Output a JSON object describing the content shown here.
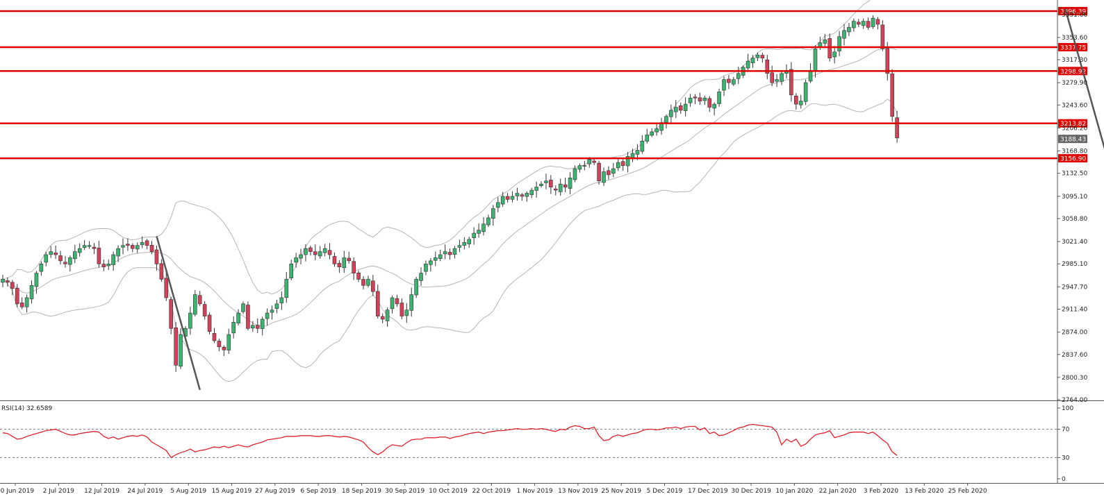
{
  "chart_data": [
    {
      "type": "candlestick",
      "title": "",
      "price_axis": {
        "ylim": [
          2764,
          3410
        ],
        "ticks": [
          "3391.00",
          "3353.60",
          "3317.30",
          "3279.90",
          "3243.60",
          "3206.20",
          "3168.80",
          "3132.50",
          "3095.10",
          "3058.80",
          "3021.40",
          "2985.10",
          "2947.70",
          "2911.40",
          "2874.00",
          "2837.60",
          "2800.30",
          "2764.00"
        ]
      },
      "date_labels": [
        "20 Jun 2019",
        "2 Jul 2019",
        "12 Jul 2019",
        "24 Jul 2019",
        "5 Aug 2019",
        "15 Aug 2019",
        "27 Aug 2019",
        "6 Sep 2019",
        "18 Sep 2019",
        "30 Sep 2019",
        "10 Oct 2019",
        "22 Oct 2019",
        "1 Nov 2019",
        "13 Nov 2019",
        "25 Nov 2019",
        "5 Dec 2019",
        "17 Dec 2019",
        "30 Dec 2019",
        "10 Jan 2020",
        "22 Jan 2020",
        "3 Feb 2020",
        "13 Feb 2020",
        "25 Feb 2020"
      ],
      "date_label_text": [
        "20 Jun 2019",
        "2 Jul 2019",
        "12 Jul 2019",
        "24 Jul 2019",
        "5 Aug 2019",
        "15 Aug 2019",
        "27 Aug 2019",
        "6 Sep 2019",
        "18 Sep 2019",
        "30 Sep 2019",
        "10 Oct 2019",
        "22 Oct 2019",
        "1 Nov 2019",
        "13 Nov 2019",
        "25 Nov 2019",
        "5 Dec 2019",
        "17 Dec 2019",
        "30 Dec 2019",
        "10 Jan 2020",
        "22 Jan 2020",
        "3 Feb 2020",
        "13 Feb 2020",
        "25 Feb 2020"
      ],
      "horizontal_levels": [
        {
          "label": "3396.39",
          "value": 3396.39
        },
        {
          "label": "3337.75",
          "value": 3337.75
        },
        {
          "label": "3298.92",
          "value": 3298.92
        },
        {
          "label": "3213.82",
          "value": 3213.82
        },
        {
          "label": "3156.90",
          "value": 3156.9
        }
      ],
      "current_price": {
        "label": "3188.43",
        "value": 3188.43
      },
      "trend_lines": [
        {
          "from": {
            "bar": 32,
            "price": 3030
          },
          "to": {
            "bar": 41,
            "price": 2780
          }
        },
        {
          "from": {
            "bar": 221,
            "price": 3400
          },
          "to": {
            "bar": 230,
            "price": 3150
          }
        }
      ],
      "closes": [
        2960,
        2955,
        2945,
        2920,
        2915,
        2930,
        2950,
        2970,
        2985,
        3000,
        3005,
        3000,
        2990,
        2985,
        2995,
        3005,
        3010,
        3015,
        3015,
        3010,
        2985,
        2980,
        2985,
        3000,
        3010,
        3015,
        3015,
        3010,
        3015,
        3020,
        3015,
        3005,
        2985,
        2960,
        2930,
        2880,
        2820,
        2870,
        2880,
        2905,
        2935,
        2920,
        2900,
        2875,
        2860,
        2850,
        2845,
        2870,
        2890,
        2905,
        2920,
        2880,
        2885,
        2880,
        2895,
        2905,
        2910,
        2920,
        2930,
        2960,
        2985,
        2995,
        3000,
        3010,
        3005,
        3000,
        3005,
        3010,
        3000,
        2985,
        2980,
        2995,
        2990,
        2970,
        2960,
        2950,
        2960,
        2940,
        2900,
        2895,
        2910,
        2930,
        2920,
        2900,
        2910,
        2935,
        2960,
        2970,
        2985,
        2990,
        2995,
        3000,
        3005,
        3000,
        3010,
        3015,
        3020,
        3025,
        3035,
        3040,
        3050,
        3060,
        3075,
        3085,
        3095,
        3090,
        3095,
        3100,
        3095,
        3100,
        3105,
        3110,
        3115,
        3120,
        3110,
        3105,
        3115,
        3110,
        3125,
        3140,
        3145,
        3145,
        3155,
        3150,
        3120,
        3135,
        3130,
        3140,
        3150,
        3145,
        3160,
        3165,
        3170,
        3185,
        3195,
        3200,
        3205,
        3215,
        3225,
        3235,
        3240,
        3235,
        3245,
        3255,
        3255,
        3250,
        3255,
        3240,
        3245,
        3265,
        3285,
        3280,
        3285,
        3295,
        3305,
        3315,
        3320,
        3325,
        3320,
        3295,
        3280,
        3285,
        3295,
        3300,
        3260,
        3245,
        3250,
        3280,
        3300,
        3335,
        3345,
        3350,
        3320,
        3330,
        3355,
        3365,
        3370,
        3380,
        3375,
        3380,
        3370,
        3385,
        3375,
        3335,
        3295,
        3225,
        3190
      ]
    },
    {
      "type": "line",
      "title": "RSI(14) 32.6589",
      "indicator_label": "RSI(14) 32.6589",
      "ylim": [
        0,
        100
      ],
      "ticks": [
        "100",
        "70",
        "30",
        "0"
      ],
      "levels": [
        70,
        30
      ],
      "series": [
        {
          "values": [
            65,
            64,
            60,
            56,
            57,
            60,
            62,
            64,
            66,
            68,
            69,
            70,
            67,
            64,
            62,
            62,
            64,
            65,
            66,
            67,
            66,
            60,
            57,
            59,
            56,
            58,
            60,
            61,
            60,
            62,
            59,
            52,
            48,
            44,
            40,
            30,
            34,
            37,
            39,
            42,
            38,
            40,
            41,
            43,
            45,
            44,
            46,
            44,
            46,
            48,
            46,
            45,
            48,
            50,
            52,
            55,
            56,
            57,
            58,
            60,
            60,
            60,
            61,
            61,
            61,
            60,
            60,
            61,
            61,
            60,
            59,
            60,
            59,
            57,
            55,
            52,
            44,
            38,
            34,
            38,
            44,
            48,
            47,
            46,
            51,
            55,
            56,
            56,
            58,
            58,
            58,
            59,
            59,
            57,
            59,
            60,
            62,
            64,
            65,
            66,
            64,
            66,
            67,
            68,
            68,
            69,
            70,
            71,
            70,
            70,
            71,
            70,
            71,
            70,
            68,
            67,
            70,
            69,
            73,
            75,
            74,
            71,
            71,
            73,
            61,
            54,
            55,
            60,
            62,
            60,
            62,
            64,
            65,
            68,
            70,
            70,
            69,
            70,
            72,
            72,
            73,
            71,
            73,
            74,
            74,
            69,
            72,
            64,
            66,
            61,
            62,
            65,
            68,
            72,
            73,
            76,
            77,
            76,
            75,
            74,
            73,
            66,
            48,
            56,
            52,
            56,
            46,
            49,
            56,
            62,
            64,
            65,
            68,
            58,
            60,
            62,
            65,
            66,
            66,
            66,
            64,
            66,
            61,
            55,
            50,
            38,
            33
          ]
        }
      ]
    }
  ]
}
